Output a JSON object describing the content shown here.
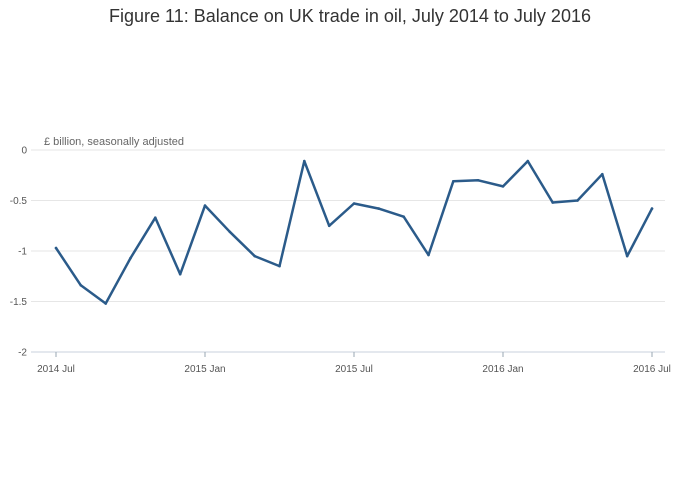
{
  "title": "Figure 11: Balance on UK trade in oil, July 2014 to July 2016",
  "chart_data": {
    "type": "line",
    "title": "Figure 11: Balance on UK trade in oil, July 2014 to July 2016",
    "ylabel": "£ billion, seasonally adjusted",
    "xlabel": "",
    "x": [
      "2014-07",
      "2014-08",
      "2014-09",
      "2014-10",
      "2014-11",
      "2014-12",
      "2015-01",
      "2015-02",
      "2015-03",
      "2015-04",
      "2015-05",
      "2015-06",
      "2015-07",
      "2015-08",
      "2015-09",
      "2015-10",
      "2015-11",
      "2015-12",
      "2016-01",
      "2016-02",
      "2016-03",
      "2016-04",
      "2016-05",
      "2016-06",
      "2016-07"
    ],
    "series": [
      {
        "values": [
          -0.97,
          -1.34,
          -1.52,
          -1.07,
          -0.67,
          -1.23,
          -0.55,
          -0.81,
          -1.05,
          -1.15,
          -0.11,
          -0.75,
          -0.53,
          -0.58,
          -0.66,
          -1.04,
          -0.31,
          -0.3,
          -0.36,
          -0.11,
          -0.52,
          -0.5,
          -0.24,
          -1.05,
          -0.58
        ],
        "color": "#2b5b8a"
      }
    ],
    "xticks": [
      "2014 Jul",
      "2015 Jan",
      "2015 Jul",
      "2016 Jan",
      "2016 Jul"
    ],
    "xtick_positions": [
      "2014-07",
      "2015-01",
      "2015-07",
      "2016-01",
      "2016-07"
    ],
    "yticks": [
      "0",
      "-0.5",
      "-1",
      "-1.5",
      "-2"
    ],
    "ytick_values": [
      0,
      -0.5,
      -1,
      -1.5,
      -2
    ],
    "ylim": [
      -2,
      0
    ],
    "grid": true,
    "legend": "none"
  }
}
